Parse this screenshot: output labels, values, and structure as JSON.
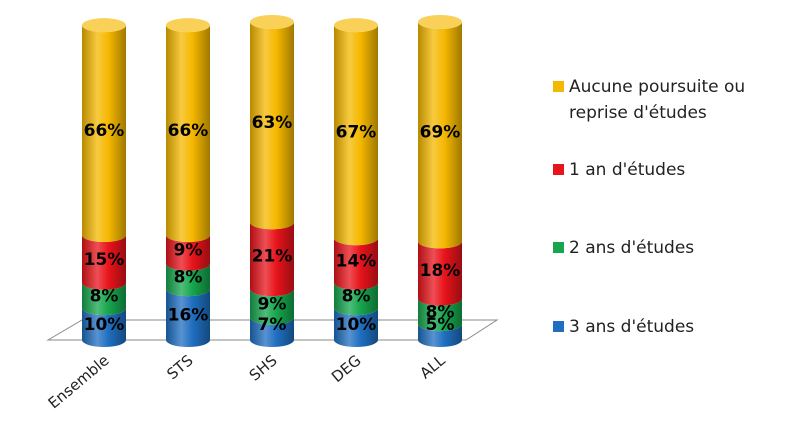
{
  "chart_data": {
    "type": "bar",
    "stacked": true,
    "style": "3d-cylinder",
    "categories": [
      "Ensemble",
      "STS",
      "SHS",
      "DEG",
      "ALL"
    ],
    "series": [
      {
        "name": "3 ans d'études",
        "values": [
          10,
          16,
          7,
          10,
          5
        ],
        "color": "#1f6fc0",
        "labels": [
          "10%",
          "16%",
          "7%",
          "10%",
          "5%"
        ]
      },
      {
        "name": "2 ans d'études",
        "values": [
          8,
          8,
          9,
          8,
          8
        ],
        "color": "#16a64d",
        "labels": [
          "8%",
          "8%",
          "9%",
          "8%",
          "8%"
        ]
      },
      {
        "name": "1 an d'études",
        "values": [
          15,
          9,
          21,
          14,
          18
        ],
        "color": "#e8141b",
        "labels": [
          "15%",
          "9%",
          "21%",
          "14%",
          "18%"
        ]
      },
      {
        "name": "Aucune poursuite ou reprise d'études",
        "values": [
          66,
          66,
          63,
          67,
          69
        ],
        "color": "#f5b800",
        "labels": [
          "66%",
          "66%",
          "63%",
          "67%",
          "69%"
        ]
      }
    ],
    "ylim": [
      0,
      100
    ],
    "legend_position": "right"
  }
}
